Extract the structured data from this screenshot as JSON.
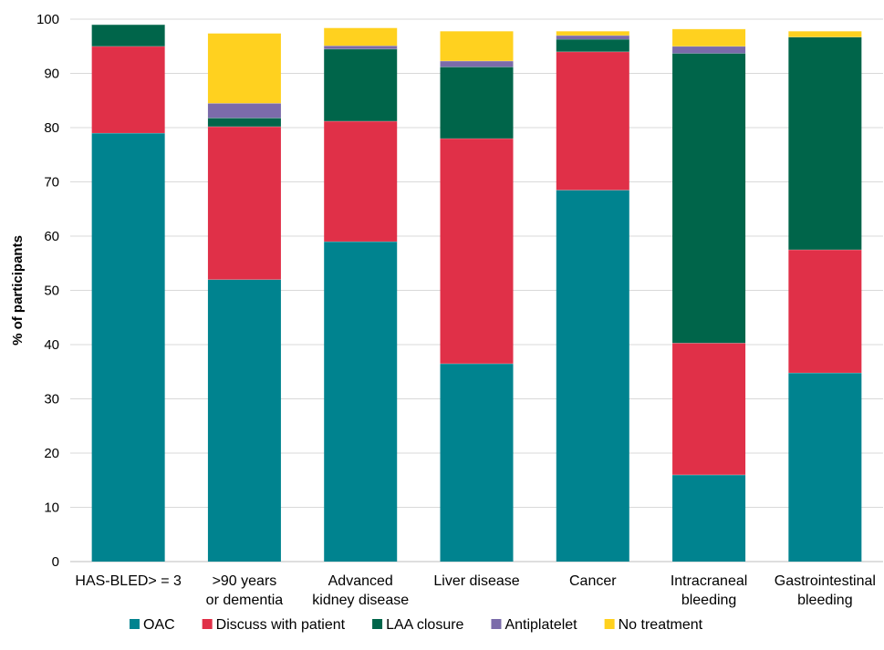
{
  "chart_data": {
    "type": "bar",
    "stacked": true,
    "ylabel": "% of participants",
    "xlabel": "",
    "ylim": [
      0,
      100
    ],
    "yticks": [
      0,
      10,
      20,
      30,
      40,
      50,
      60,
      70,
      80,
      90,
      100
    ],
    "grid": true,
    "legend_position": "bottom",
    "categories": [
      [
        "HAS-BLED> = 3"
      ],
      [
        ">90 years",
        "or dementia"
      ],
      [
        "Advanced",
        "kidney disease"
      ],
      [
        "Liver disease"
      ],
      [
        "Cancer"
      ],
      [
        "Intracraneal",
        "bleeding"
      ],
      [
        "Gastrointestinal",
        "bleeding"
      ]
    ],
    "series": [
      {
        "name": "OAC",
        "color": "#00838F",
        "values": [
          79,
          52,
          59,
          36.5,
          68.5,
          16,
          34.8
        ]
      },
      {
        "name": "Discuss with patient",
        "color": "#E03048",
        "values": [
          16,
          28.2,
          22.2,
          41.5,
          25.5,
          24.3,
          22.7
        ]
      },
      {
        "name": "LAA closure",
        "color": "#00654A",
        "values": [
          4,
          1.6,
          13.3,
          13.2,
          2.3,
          53.4,
          39.2
        ]
      },
      {
        "name": "Antiplatelet",
        "color": "#7B6BAA",
        "values": [
          0,
          2.7,
          0.6,
          1.1,
          0.7,
          1.3,
          0
        ]
      },
      {
        "name": "No treatment",
        "color": "#FFD11F",
        "values": [
          0,
          12.9,
          3.3,
          5.5,
          0.8,
          3.2,
          1.1
        ]
      }
    ]
  }
}
